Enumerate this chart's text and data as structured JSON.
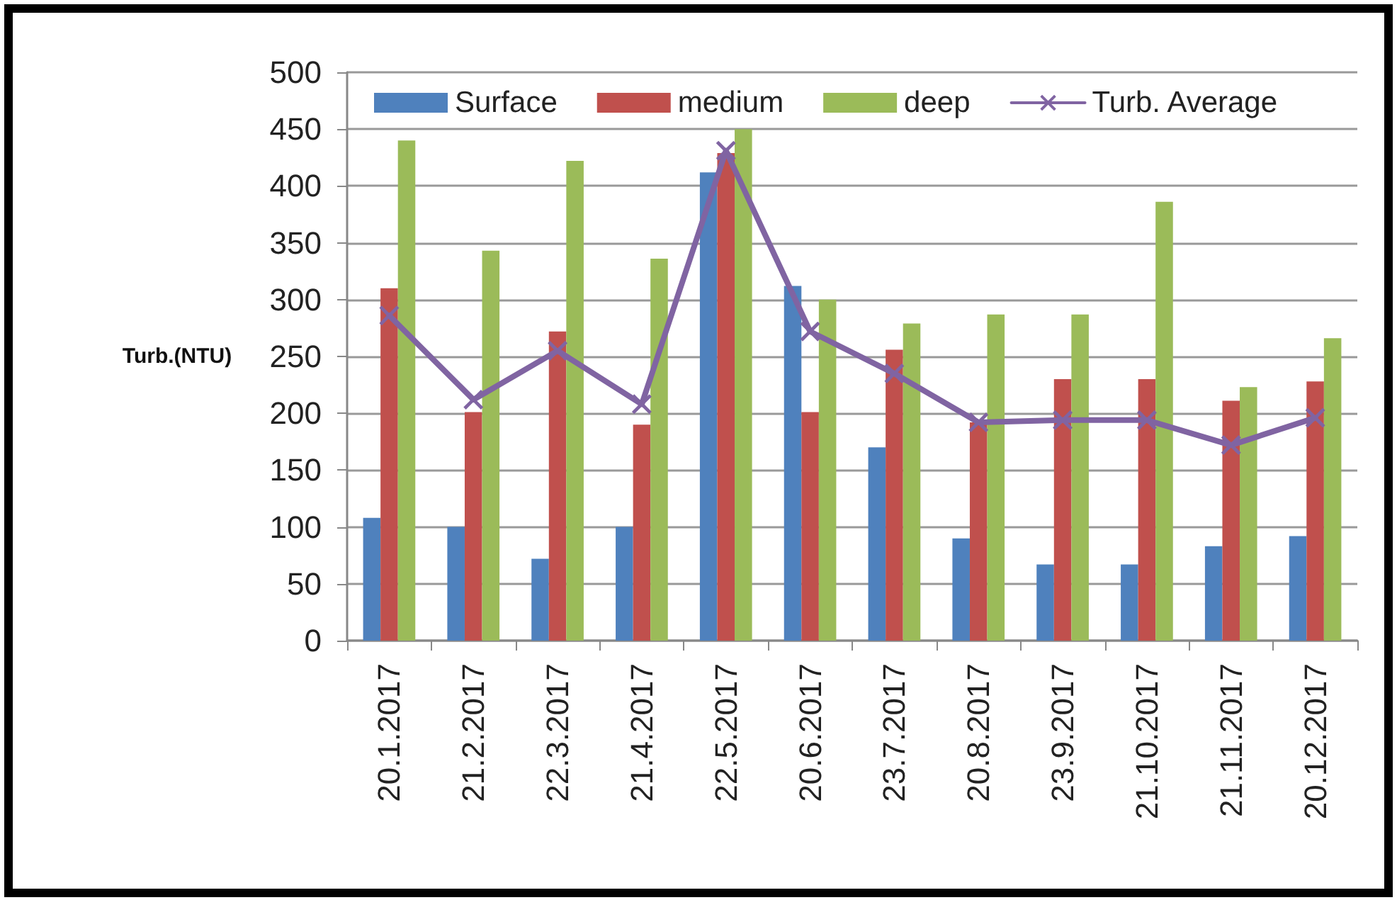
{
  "chart_data": {
    "type": "bar",
    "ylabel": "Turb.(NTU)",
    "categories": [
      "20.1.2017",
      "21.2.2017",
      "22.3.2017",
      "21.4.2017",
      "22.5.2017",
      "20.6.2017",
      "23.7.2017",
      "20.8.2017",
      "23.9.2017",
      "21.10.2017",
      "21.11.2017",
      "20.12.2017"
    ],
    "series": [
      {
        "name": "Surface",
        "color": "#4f81bd",
        "values": [
          108,
          100,
          72,
          100,
          412,
          312,
          170,
          90,
          67,
          67,
          83,
          92
        ]
      },
      {
        "name": "medium",
        "color": "#c0504d",
        "values": [
          310,
          201,
          272,
          190,
          429,
          201,
          256,
          192,
          230,
          230,
          211,
          228
        ]
      },
      {
        "name": "deep",
        "color": "#9bbb59",
        "values": [
          440,
          343,
          422,
          336,
          450,
          300,
          279,
          287,
          287,
          386,
          223,
          266
        ]
      },
      {
        "name": "Turb. Average",
        "type": "line",
        "color": "#8064a2",
        "values": [
          286,
          212,
          255,
          208,
          431,
          272,
          235,
          192,
          194,
          194,
          172,
          196
        ]
      }
    ],
    "ylim": [
      0,
      500
    ],
    "yticks": [
      0,
      50,
      100,
      150,
      200,
      250,
      300,
      350,
      400,
      450,
      500
    ],
    "grid": "y",
    "legend": "top",
    "marker": "cross",
    "line_style": "solid"
  }
}
